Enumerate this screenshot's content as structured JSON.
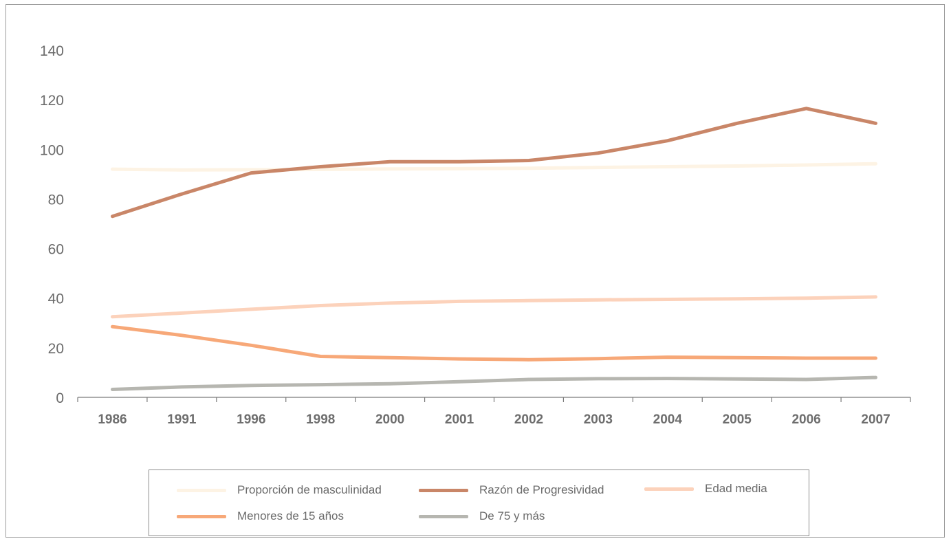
{
  "chart_data": {
    "type": "line",
    "categories": [
      "1986",
      "1991",
      "1996",
      "1998",
      "2000",
      "2001",
      "2002",
      "2003",
      "2004",
      "2005",
      "2006",
      "2007"
    ],
    "ylim": [
      0,
      140
    ],
    "yticks": [
      0,
      20,
      40,
      60,
      80,
      100,
      120,
      140
    ],
    "grid": false,
    "legend_position": "bottom",
    "series": [
      {
        "name": "Proporción de masculinidad",
        "color": "#fdf3e4",
        "values": [
          92,
          91.7,
          91.8,
          91.9,
          92.1,
          92.2,
          92.4,
          92.7,
          93,
          93.3,
          93.7,
          94.2
        ]
      },
      {
        "name": "Razón de Progresividad",
        "color": "#c98668",
        "values": [
          73,
          82,
          90.5,
          93,
          95,
          95,
          95.5,
          98.5,
          103.5,
          110.5,
          116.5,
          110.5
        ]
      },
      {
        "name": "Edad media",
        "color": "#fcd2bb",
        "values": [
          32.5,
          34,
          35.5,
          37,
          38,
          38.7,
          39,
          39.3,
          39.5,
          39.7,
          40,
          40.5
        ]
      },
      {
        "name": "Menores de 15 años",
        "color": "#f7a878",
        "values": [
          28.5,
          25,
          21,
          16.5,
          16,
          15.5,
          15.2,
          15.6,
          16.2,
          16,
          15.8,
          15.8
        ]
      },
      {
        "name": "De 75 y más",
        "color": "#b6b6b0",
        "values": [
          3.2,
          4.2,
          4.8,
          5.1,
          5.5,
          6.3,
          7.2,
          7.5,
          7.6,
          7.4,
          7.2,
          8
        ]
      }
    ]
  }
}
